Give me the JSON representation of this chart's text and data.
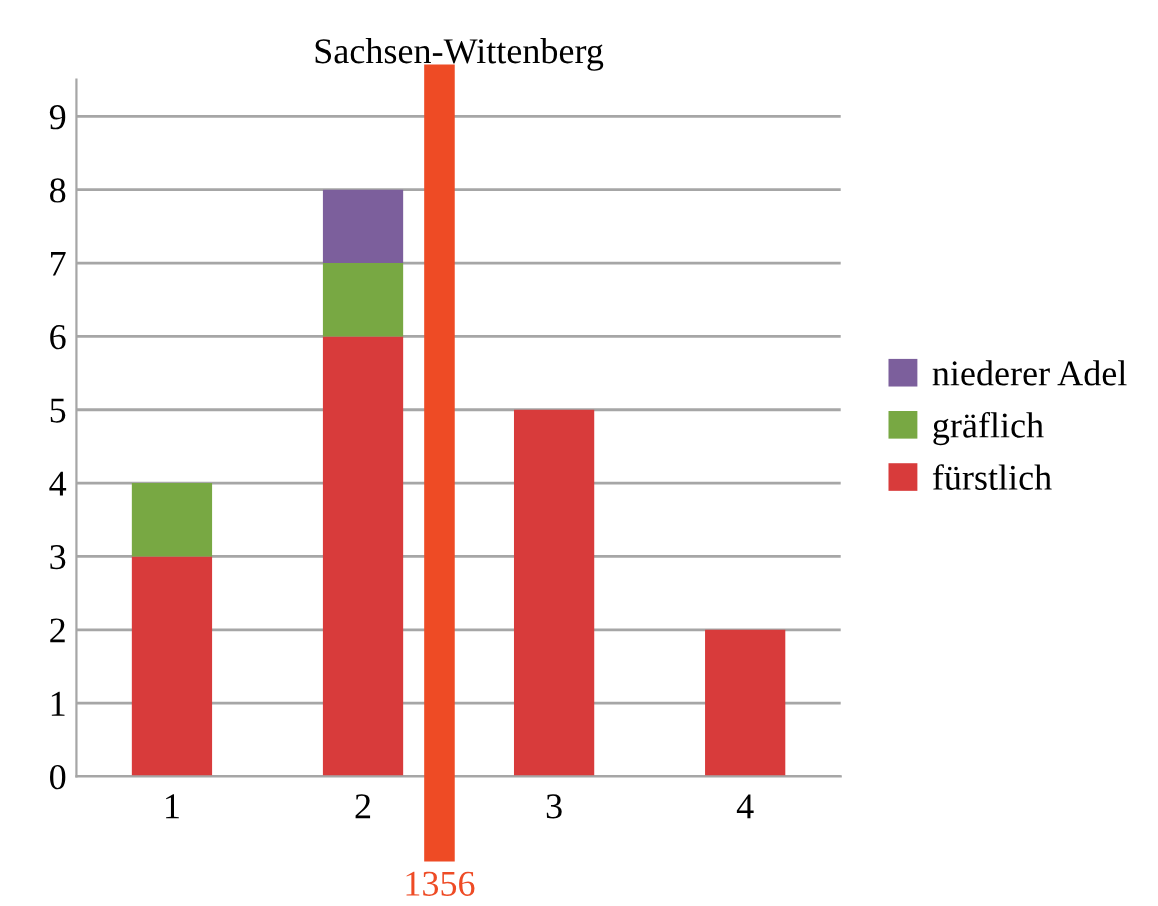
{
  "chart_data": {
    "type": "bar",
    "title": "Sachsen-Wittenberg",
    "stacked": true,
    "x": [
      1,
      2,
      3,
      4
    ],
    "xlim": [
      0.5,
      4.5
    ],
    "xticks": [
      1,
      2,
      3,
      4
    ],
    "series": [
      {
        "name": "fürstlich",
        "color": "#d83b3b",
        "values": [
          3,
          6,
          5,
          2
        ]
      },
      {
        "name": "gräflich",
        "color": "#78a843",
        "values": [
          1,
          1,
          0,
          0
        ]
      },
      {
        "name": "niederer Adel",
        "color": "#7c5f9c",
        "values": [
          0,
          1,
          0,
          0
        ]
      }
    ],
    "ylim": [
      0,
      9.5
    ],
    "yticks": [
      0,
      1,
      2,
      3,
      4,
      5,
      6,
      7,
      8,
      9
    ],
    "grid": "y",
    "legend": "right",
    "ref_lines": [
      {
        "axis": "x",
        "value": 2.4,
        "color": "#ee4b25"
      }
    ],
    "annotations": [
      "1356"
    ]
  }
}
